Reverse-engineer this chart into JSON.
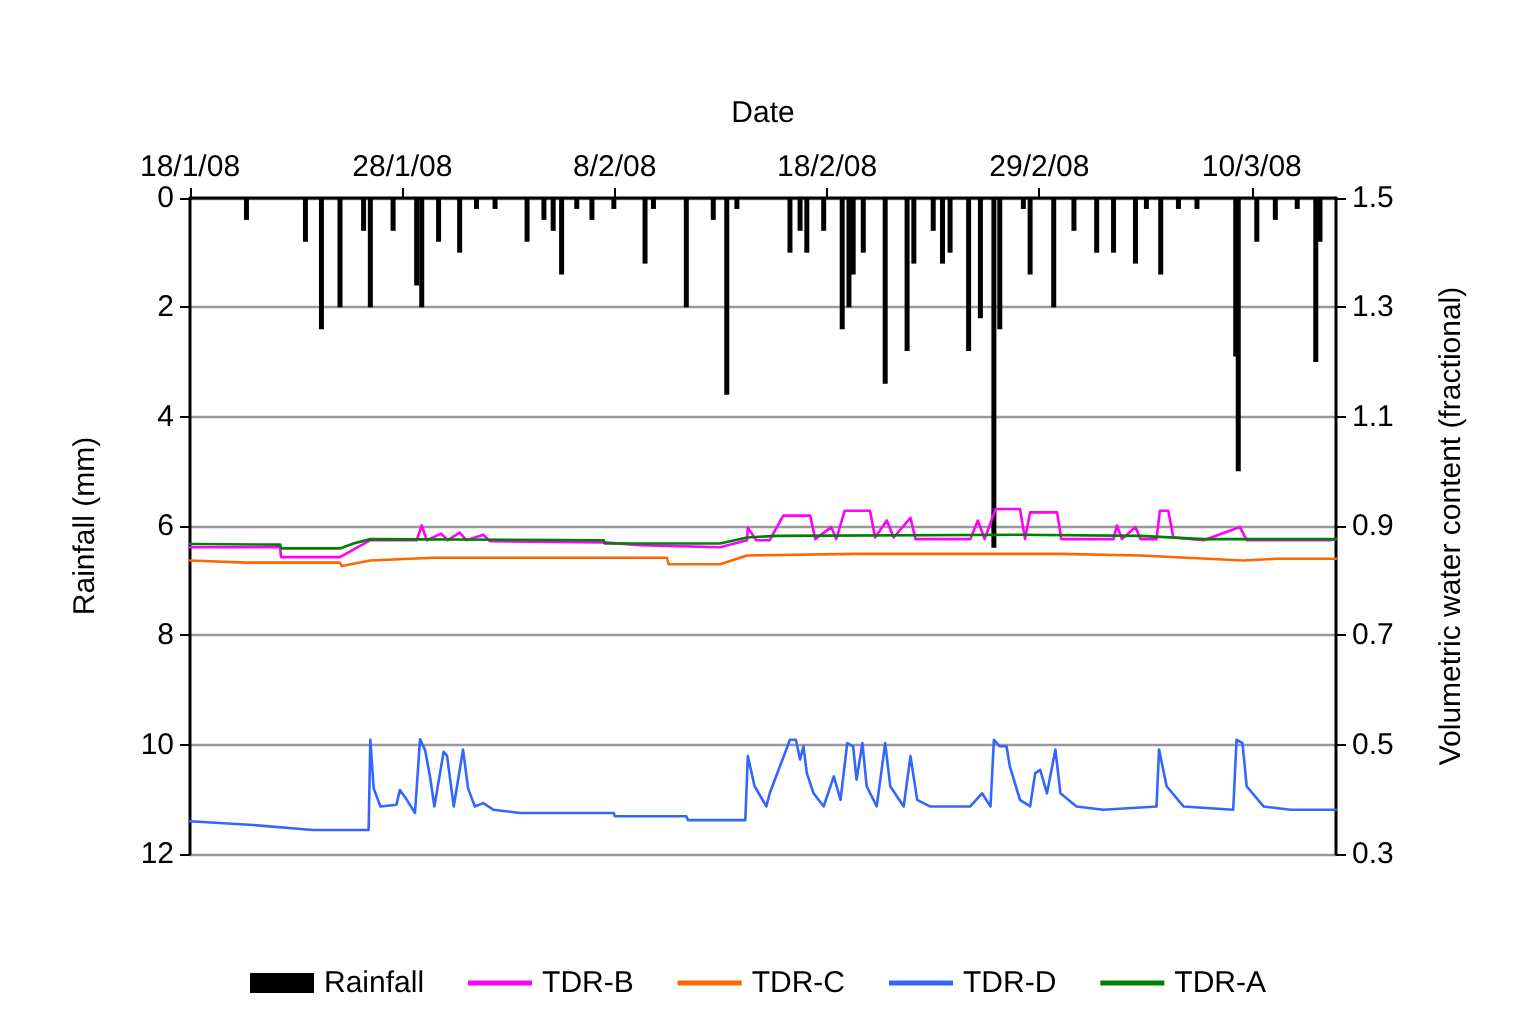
{
  "chart_data": {
    "type": "line",
    "xlabel": "Date",
    "ylabel": "Rainfall (mm)",
    "y2label": "Volumetric water content (fractional)",
    "xlim": [
      "--01-18",
      "--03-14T16:00"
    ],
    "xticks": [
      {
        "value": "--01-18",
        "label": "18/1/08"
      },
      {
        "value": "--01-28T12:00",
        "label": "28/1/08"
      },
      {
        "value": "--02-08",
        "label": "8/2/08"
      },
      {
        "value": "--02-18T12:00",
        "label": "18/2/08"
      },
      {
        "value": "--02-29",
        "label": "29/2/08"
      },
      {
        "value": "--03-10T12:00",
        "label": "10/3/08"
      }
    ],
    "ylim": [
      12,
      0
    ],
    "yticks": [
      0,
      2,
      4,
      6,
      8,
      10,
      12
    ],
    "y2lim": [
      0.3,
      1.5
    ],
    "y2ticks": [
      0.3,
      0.5,
      0.7,
      0.9,
      1.1,
      1.3,
      1.5
    ],
    "grid": "y",
    "legend": "bottom",
    "marker": "none",
    "line_style": "solid",
    "series": [
      {
        "name": "Rainfall",
        "type": "bar",
        "color": "#000000",
        "x": [
          "--01-20T19:00",
          "--01-23T17:00",
          "--01-24T12:00",
          "--01-25T10:00",
          "--01-26T14:00",
          "--01-26T22:00",
          "--01-28T01:00",
          "--01-29T05:00",
          "--01-29T11:00",
          "--01-30T07:00",
          "--01-31T08:00",
          "--02-01T04:00",
          "--02-02T02:00",
          "--02-03T16:00",
          "--02-04T12:00",
          "--02-04T23:00",
          "--02-05T09:00",
          "--02-06T03:00",
          "--02-06T21:00",
          "--02-07T23:00",
          "--02-09T12:00",
          "--02-09T22:00",
          "--02-11T13:00",
          "--02-12T21:00",
          "--02-13T13:00",
          "--02-14T01:00",
          "--02-16T16:00",
          "--02-17T04:00",
          "--02-17T12:00",
          "--02-18T08:00",
          "--02-19T06:00",
          "--02-19T14:00",
          "--02-19T19:00",
          "--02-20T07:00",
          "--02-21T09:00",
          "--02-22T11:00",
          "--02-22T19:00",
          "--02-23T18:00",
          "--02-24T05:00",
          "--02-24T14:00",
          "--02-25T12:00",
          "--02-26T02:00",
          "--02-26T18:00",
          "--02-27T01:00",
          "--02-28T05:00",
          "--02-28T13:00",
          "--02-29T17:00",
          "--03-01T17:00",
          "--03-02T20:00",
          "--03-03T16:00",
          "--03-04T18:00",
          "--03-05T07:00",
          "--03-06T00:00",
          "--03-06T21:00",
          "--03-07T19:00",
          "--03-09T17:00",
          "--03-09T20:00",
          "--03-10T18:00",
          "--03-11T16:00",
          "--03-12T18:00",
          "--03-13T16:00",
          "--03-13T21:00"
        ],
        "values": [
          0.4,
          0.8,
          2.4,
          2.0,
          0.6,
          2.0,
          0.6,
          1.6,
          2.0,
          0.8,
          1.0,
          0.2,
          0.2,
          0.8,
          0.4,
          0.6,
          1.4,
          0.2,
          0.4,
          0.2,
          1.2,
          0.2,
          2.0,
          0.4,
          3.6,
          0.2,
          1.0,
          0.6,
          1.0,
          0.6,
          2.4,
          2.0,
          1.4,
          1.0,
          3.4,
          2.8,
          1.2,
          0.6,
          1.2,
          1.0,
          2.8,
          2.2,
          6.4,
          2.4,
          0.2,
          1.4,
          2.0,
          0.6,
          1.0,
          1.0,
          1.2,
          0.2,
          1.4,
          0.2,
          0.2,
          2.9,
          5.0,
          0.8,
          0.4,
          0.2,
          3.0,
          0.8
        ]
      },
      {
        "name": "TDR-B",
        "axis": "y2",
        "color": "#ff00ff",
        "x": [
          "--01-18",
          "--01-22T11:00",
          "--01-22T12:00",
          "--01-25T10:00",
          "--01-26T22:00",
          "--01-29T05:00",
          "--01-29T11:00",
          "--01-29T17:00",
          "--01-30T10:00",
          "--01-30T18:00",
          "--01-31T08:00",
          "--01-31T16:00",
          "--02-01T12:00",
          "--02-01T20:00",
          "--02-07T11:00",
          "--02-09T06:00",
          "--02-13T05:00",
          "--02-14T13:00",
          "--02-14T14:00",
          "--02-15T00:00",
          "--02-15T16:00",
          "--02-16T08:00",
          "--02-17T16:00",
          "--02-17T22:00",
          "--02-18T17:00",
          "--02-18T23:00",
          "--02-19T09:00",
          "--02-20T15:00",
          "--02-20T21:00",
          "--02-21T11:00",
          "--02-21T19:00",
          "--02-22T15:00",
          "--02-22T21:00",
          "--02-25T14:00",
          "--02-25T23:00",
          "--02-26T07:00",
          "--02-26T20:00",
          "--02-28T01:00",
          "--02-28T07:00",
          "--02-28T13:00",
          "--02-29T21:00",
          "--03-01T02:00",
          "--03-03T16:00",
          "--03-03T20:00",
          "--03-04T02:00",
          "--03-04T18:00",
          "--03-05T00:00",
          "--03-05T19:00",
          "--03-05T23:00",
          "--03-06T09:00",
          "--03-06T15:00",
          "--03-08T03:00",
          "--03-09T22:00",
          "--03-10T06:00",
          "--03-14T09:00",
          "--03-14T16:00"
        ],
        "values": [
          0.861,
          0.861,
          0.843,
          0.843,
          0.874,
          0.874,
          0.901,
          0.874,
          0.886,
          0.874,
          0.888,
          0.874,
          0.884,
          0.872,
          0.87,
          0.865,
          0.861,
          0.874,
          0.897,
          0.874,
          0.874,
          0.919,
          0.919,
          0.876,
          0.898,
          0.876,
          0.928,
          0.928,
          0.879,
          0.91,
          0.879,
          0.915,
          0.876,
          0.876,
          0.91,
          0.876,
          0.931,
          0.931,
          0.876,
          0.925,
          0.925,
          0.876,
          0.876,
          0.901,
          0.876,
          0.898,
          0.876,
          0.876,
          0.928,
          0.928,
          0.879,
          0.874,
          0.898,
          0.874,
          0.874,
          0.876
        ]
      },
      {
        "name": "TDR-C",
        "axis": "y2",
        "color": "#ff6600",
        "x": [
          "--01-18",
          "--01-20T19:00",
          "--01-25T10:00",
          "--01-25T12:00",
          "--01-26T22:00",
          "--01-30T01:00",
          "--02-10T14:00",
          "--02-10T16:00",
          "--02-13T05:00",
          "--02-14T13:00",
          "--02-20T00:00",
          "--03-01T00:00",
          "--03-05T00:00",
          "--03-10T02:00",
          "--03-11T17:00",
          "--03-14T16:00"
        ],
        "values": [
          0.837,
          0.833,
          0.833,
          0.827,
          0.837,
          0.842,
          0.842,
          0.83,
          0.83,
          0.846,
          0.849,
          0.849,
          0.846,
          0.837,
          0.84,
          0.84
        ]
      },
      {
        "name": "TDR-D",
        "axis": "y2",
        "color": "#3366ff",
        "x": [
          "--01-18",
          "--01-21T03:00",
          "--01-24T02:00",
          "--01-26T20:00",
          "--01-26T22:00",
          "--01-27T02:00",
          "--01-27T10:00",
          "--01-28T05:00",
          "--01-28T09:00",
          "--01-28T17:00",
          "--01-29T03:00",
          "--01-29T09:00",
          "--01-29T15:00",
          "--01-29T21:00",
          "--01-30T02:00",
          "--01-30T13:00",
          "--01-30T17:00",
          "--01-31T01:00",
          "--01-31T12:00",
          "--01-31T18:00",
          "--02-01T02:00",
          "--02-01T12:00",
          "--02-02T00:00",
          "--02-03T08:00",
          "--02-07T23:00",
          "--02-08T00:00",
          "--02-11T13:00",
          "--02-11T15:00",
          "--02-14T11:00",
          "--02-14T14:00",
          "--02-14T22:00",
          "--02-15T12:00",
          "--02-15T16:00",
          "--02-16T04:00",
          "--02-16T16:00",
          "--02-16T23:00",
          "--02-17T04:00",
          "--02-17T08:00",
          "--02-17T12:00",
          "--02-17T20:00",
          "--02-18T08:00",
          "--02-18T20:00",
          "--02-19T04:00",
          "--02-19T12:00",
          "--02-19T19:00",
          "--02-19T23:00",
          "--02-20T06:00",
          "--02-20T11:00",
          "--02-20T23:00",
          "--02-21T09:00",
          "--02-21T15:00",
          "--02-22T07:00",
          "--02-22T15:00",
          "--02-22T23:00",
          "--02-23T14:00",
          "--02-25T14:00",
          "--02-26T04:00",
          "--02-26T14:00",
          "--02-26T18:00",
          "--02-27T01:00",
          "--02-27T09:00",
          "--02-27T13:00",
          "--02-28T01:00",
          "--02-28T13:00",
          "--02-28T19:00",
          "--02-29T01:00",
          "--02-29T09:00",
          "--02-29T19:00",
          "--03-01T01:00",
          "--03-01T20:00",
          "--03-03T04:00",
          "--03-05T19:00",
          "--03-05T22:00",
          "--03-06T07:00",
          "--03-07T03:00",
          "--03-09T14:00",
          "--03-09T18:00",
          "--03-10T01:00",
          "--03-10T06:00",
          "--03-11T02:00",
          "--03-12T10:00",
          "--03-14T16:00"
        ],
        "values": [
          0.36,
          0.353,
          0.344,
          0.344,
          0.509,
          0.42,
          0.387,
          0.39,
          0.417,
          0.4,
          0.375,
          0.51,
          0.49,
          0.44,
          0.387,
          0.487,
          0.48,
          0.387,
          0.491,
          0.42,
          0.387,
          0.393,
          0.381,
          0.375,
          0.375,
          0.369,
          0.369,
          0.362,
          0.362,
          0.479,
          0.424,
          0.387,
          0.411,
          0.46,
          0.509,
          0.509,
          0.473,
          0.497,
          0.448,
          0.411,
          0.387,
          0.442,
          0.399,
          0.503,
          0.497,
          0.436,
          0.503,
          0.424,
          0.387,
          0.503,
          0.424,
          0.387,
          0.479,
          0.399,
          0.387,
          0.387,
          0.411,
          0.387,
          0.509,
          0.497,
          0.497,
          0.46,
          0.399,
          0.387,
          0.448,
          0.454,
          0.411,
          0.491,
          0.411,
          0.387,
          0.381,
          0.387,
          0.491,
          0.424,
          0.387,
          0.381,
          0.509,
          0.503,
          0.424,
          0.387,
          0.381,
          0.381
        ]
      },
      {
        "name": "TDR-A",
        "axis": "y2",
        "color": "#008000",
        "x": [
          "--01-18",
          "--01-22T11:00",
          "--01-22T12:00",
          "--01-25T10:00",
          "--01-26T02:00",
          "--01-26T22:00",
          "--02-07T11:00",
          "--02-07T12:00",
          "--02-13T05:00",
          "--02-14T13:00",
          "--02-16T00:00",
          "--02-28T00:00",
          "--03-05T00:00",
          "--03-08T03:00",
          "--03-14T16:00"
        ],
        "values": [
          0.867,
          0.866,
          0.859,
          0.859,
          0.868,
          0.876,
          0.874,
          0.868,
          0.868,
          0.879,
          0.882,
          0.884,
          0.882,
          0.876,
          0.876
        ]
      }
    ]
  }
}
